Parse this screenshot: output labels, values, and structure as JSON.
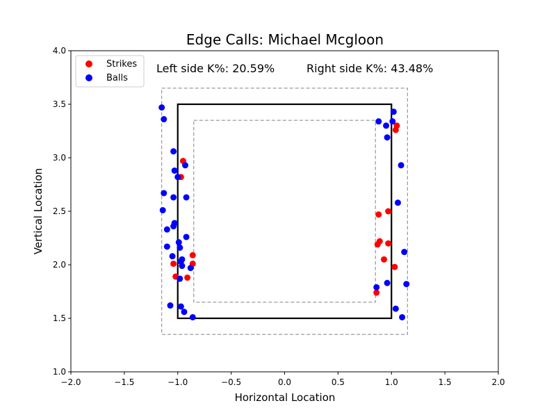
{
  "chart_data": {
    "type": "scatter",
    "title": "Edge Calls: Michael Mcgloon",
    "xlabel": "Horizontal Location",
    "ylabel": "Vertical Location",
    "xlim": [
      -2.0,
      2.0
    ],
    "ylim": [
      1.0,
      4.0
    ],
    "xticks": [
      "−2.0",
      "−1.5",
      "−1.0",
      "−0.5",
      "0.0",
      "0.5",
      "1.0",
      "1.5",
      "2.0"
    ],
    "yticks": [
      "1.0",
      "1.5",
      "2.0",
      "2.5",
      "3.0",
      "3.5",
      "4.0"
    ],
    "xtick_values": [
      -2.0,
      -1.5,
      -1.0,
      -0.5,
      0.0,
      0.5,
      1.0,
      1.5,
      2.0
    ],
    "ytick_values": [
      1.0,
      1.5,
      2.0,
      2.5,
      3.0,
      3.5,
      4.0
    ],
    "grid": false,
    "legend_position": "top-left",
    "annotations": {
      "left": "Left side K%: 20.59%",
      "right": "Right side K%: 43.48%"
    },
    "zones": {
      "strike_zone": {
        "x": [
          -1.0,
          1.0
        ],
        "y": [
          1.5,
          3.5
        ],
        "color": "#000000"
      },
      "outer_zone": {
        "x": [
          -1.15,
          1.15
        ],
        "y": [
          1.35,
          3.65
        ],
        "color": "#808080"
      },
      "inner_zone": {
        "x": [
          -0.85,
          0.85
        ],
        "y": [
          1.65,
          3.35
        ],
        "color": "#808080"
      }
    },
    "series": [
      {
        "name": "Strikes",
        "color": "#ff0000",
        "points": [
          [
            -0.95,
            2.97
          ],
          [
            -0.97,
            2.82
          ],
          [
            -0.86,
            2.09
          ],
          [
            -1.04,
            2.01
          ],
          [
            -0.86,
            2.01
          ],
          [
            -1.02,
            1.89
          ],
          [
            -0.91,
            1.88
          ],
          [
            1.05,
            3.3
          ],
          [
            1.04,
            3.26
          ],
          [
            0.97,
            2.5
          ],
          [
            0.88,
            2.47
          ],
          [
            0.89,
            2.22
          ],
          [
            0.87,
            2.19
          ],
          [
            0.97,
            2.2
          ],
          [
            0.93,
            2.05
          ],
          [
            1.03,
            1.98
          ],
          [
            0.86,
            1.74
          ]
        ]
      },
      {
        "name": "Balls",
        "color": "#0000ff",
        "points": [
          [
            -1.15,
            3.47
          ],
          [
            -1.13,
            3.36
          ],
          [
            -1.04,
            3.06
          ],
          [
            -0.93,
            2.93
          ],
          [
            -1.03,
            2.88
          ],
          [
            -1.0,
            2.82
          ],
          [
            -1.13,
            2.67
          ],
          [
            -1.04,
            2.63
          ],
          [
            -0.92,
            2.63
          ],
          [
            -1.14,
            2.51
          ],
          [
            -1.03,
            2.39
          ],
          [
            -1.04,
            2.36
          ],
          [
            -1.1,
            2.33
          ],
          [
            -0.92,
            2.26
          ],
          [
            -0.99,
            2.21
          ],
          [
            -1.1,
            2.17
          ],
          [
            -0.98,
            2.16
          ],
          [
            -1.05,
            2.08
          ],
          [
            -0.96,
            2.05
          ],
          [
            -0.97,
            2.03
          ],
          [
            -0.96,
            1.99
          ],
          [
            -0.88,
            1.97
          ],
          [
            -0.98,
            1.87
          ],
          [
            -1.07,
            1.62
          ],
          [
            -0.97,
            1.61
          ],
          [
            -0.94,
            1.56
          ],
          [
            -0.86,
            1.51
          ],
          [
            1.02,
            3.43
          ],
          [
            0.88,
            3.34
          ],
          [
            1.01,
            3.34
          ],
          [
            0.95,
            3.3
          ],
          [
            0.96,
            3.19
          ],
          [
            1.09,
            2.93
          ],
          [
            1.06,
            2.58
          ],
          [
            1.12,
            2.12
          ],
          [
            0.96,
            1.83
          ],
          [
            1.14,
            1.82
          ],
          [
            0.86,
            1.79
          ],
          [
            1.04,
            1.59
          ],
          [
            1.1,
            1.51
          ]
        ]
      }
    ]
  }
}
